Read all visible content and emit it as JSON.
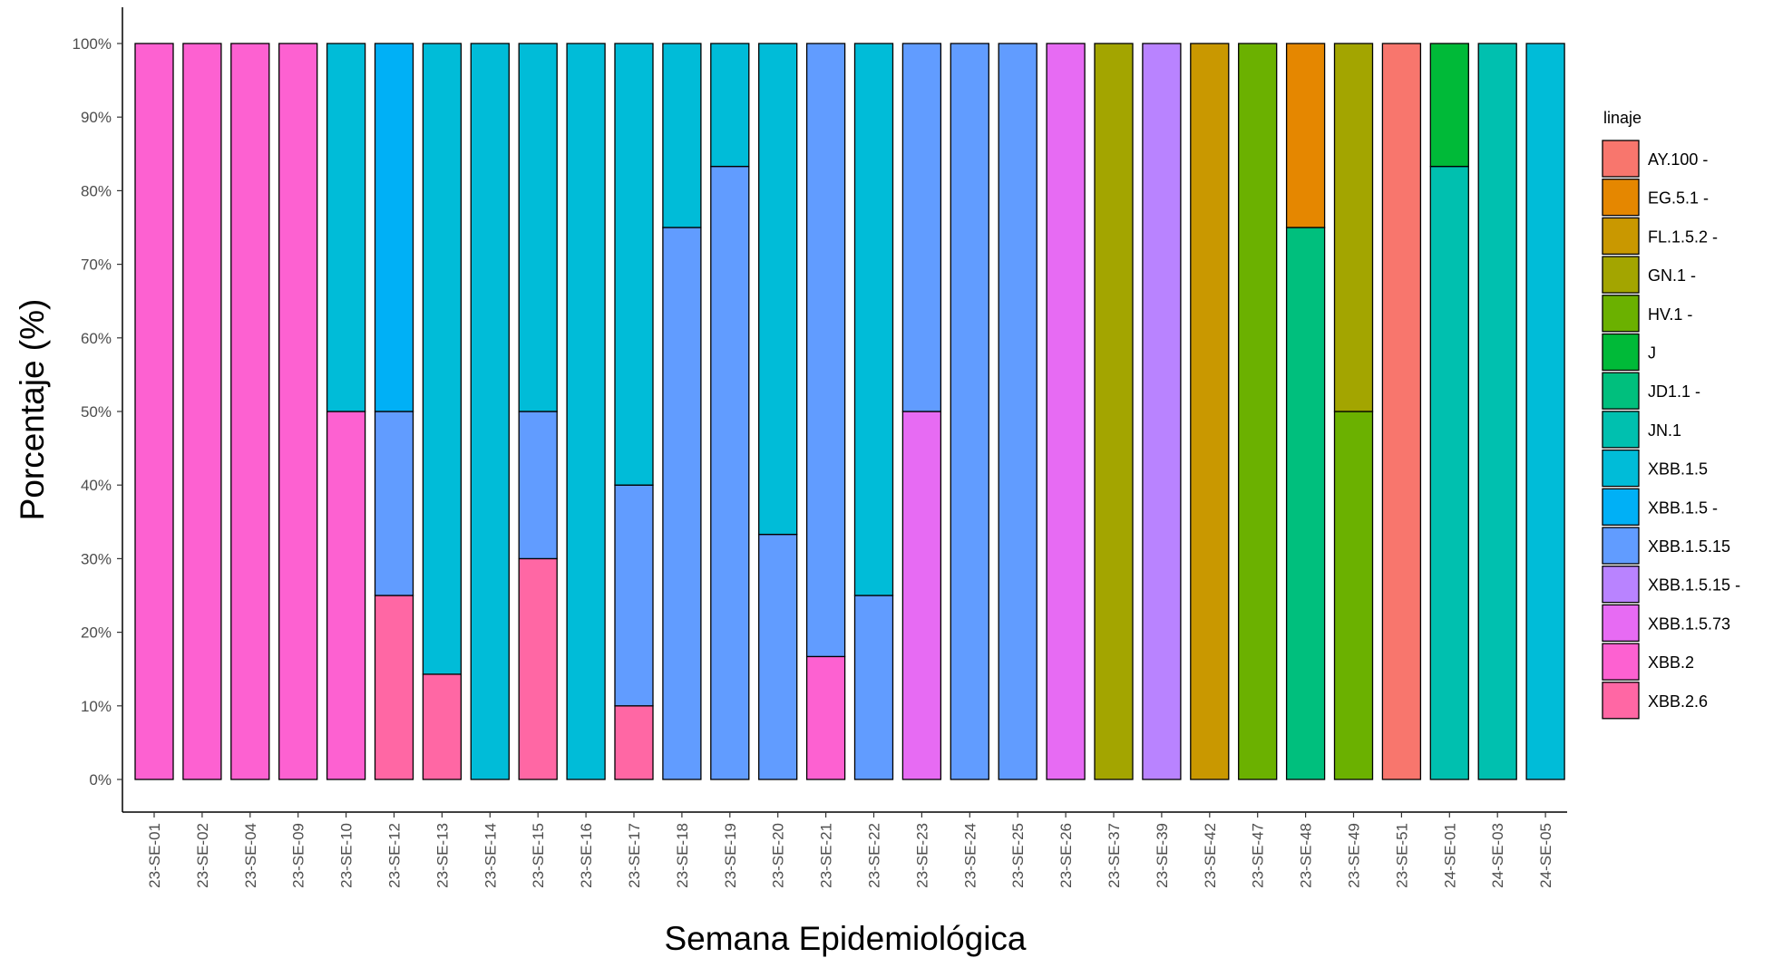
{
  "chart_data": {
    "type": "bar",
    "stacked": true,
    "percent": true,
    "xlabel": "Semana Epidemiológica",
    "ylabel": "Porcentaje (%)",
    "ylim": [
      0,
      100
    ],
    "yticks": [
      "0%",
      "10%",
      "20%",
      "30%",
      "40%",
      "50%",
      "60%",
      "70%",
      "80%",
      "90%",
      "100%"
    ],
    "grid": false,
    "legend": {
      "title": "linaje",
      "position": "right"
    },
    "categories": [
      "23-SE-01",
      "23-SE-02",
      "23-SE-04",
      "23-SE-09",
      "23-SE-10",
      "23-SE-12",
      "23-SE-13",
      "23-SE-14",
      "23-SE-15",
      "23-SE-16",
      "23-SE-17",
      "23-SE-18",
      "23-SE-19",
      "23-SE-20",
      "23-SE-21",
      "23-SE-22",
      "23-SE-23",
      "23-SE-24",
      "23-SE-25",
      "23-SE-26",
      "23-SE-37",
      "23-SE-39",
      "23-SE-42",
      "23-SE-47",
      "23-SE-48",
      "23-SE-49",
      "23-SE-51",
      "24-SE-01",
      "24-SE-03",
      "24-SE-05"
    ],
    "series": [
      {
        "name": "AY.100 -",
        "color": "#F8766D",
        "values": [
          0,
          0,
          0,
          0,
          0,
          0,
          0,
          0,
          0,
          0,
          0,
          0,
          0,
          0,
          0,
          0,
          0,
          0,
          0,
          0,
          0,
          0,
          0,
          0,
          0,
          0,
          100,
          0,
          0,
          0
        ]
      },
      {
        "name": "EG.5.1 -",
        "color": "#E58700",
        "values": [
          0,
          0,
          0,
          0,
          0,
          0,
          0,
          0,
          0,
          0,
          0,
          0,
          0,
          0,
          0,
          0,
          0,
          0,
          0,
          0,
          0,
          0,
          0,
          0,
          25,
          0,
          0,
          0,
          0,
          0
        ]
      },
      {
        "name": "FL.1.5.2 -",
        "color": "#C99800",
        "values": [
          0,
          0,
          0,
          0,
          0,
          0,
          0,
          0,
          0,
          0,
          0,
          0,
          0,
          0,
          0,
          0,
          0,
          0,
          0,
          0,
          0,
          0,
          100,
          0,
          0,
          0,
          0,
          0,
          0,
          0
        ]
      },
      {
        "name": "GN.1 -",
        "color": "#A3A500",
        "values": [
          0,
          0,
          0,
          0,
          0,
          0,
          0,
          0,
          0,
          0,
          0,
          0,
          0,
          0,
          0,
          0,
          0,
          0,
          0,
          0,
          100,
          0,
          0,
          0,
          0,
          50,
          0,
          0,
          0,
          0
        ]
      },
      {
        "name": "HV.1 -",
        "color": "#6BB100",
        "values": [
          0,
          0,
          0,
          0,
          0,
          0,
          0,
          0,
          0,
          0,
          0,
          0,
          0,
          0,
          0,
          0,
          0,
          0,
          0,
          0,
          0,
          0,
          0,
          100,
          0,
          50,
          0,
          0,
          0,
          0
        ]
      },
      {
        "name": "J",
        "color": "#00BA38",
        "values": [
          0,
          0,
          0,
          0,
          0,
          0,
          0,
          0,
          0,
          0,
          0,
          0,
          0,
          0,
          0,
          0,
          0,
          0,
          0,
          0,
          0,
          0,
          0,
          0,
          0,
          0,
          0,
          16.7,
          0,
          0
        ]
      },
      {
        "name": "JD1.1 -",
        "color": "#00BF7D",
        "values": [
          0,
          0,
          0,
          0,
          0,
          0,
          0,
          0,
          0,
          0,
          0,
          0,
          0,
          0,
          0,
          0,
          0,
          0,
          0,
          0,
          0,
          0,
          0,
          0,
          75,
          0,
          0,
          0,
          0,
          0
        ]
      },
      {
        "name": "JN.1",
        "color": "#00C0AF",
        "values": [
          0,
          0,
          0,
          0,
          0,
          0,
          0,
          0,
          0,
          0,
          0,
          0,
          0,
          0,
          0,
          0,
          0,
          0,
          0,
          0,
          0,
          0,
          0,
          0,
          0,
          0,
          0,
          83.3,
          100,
          0
        ]
      },
      {
        "name": "XBB.1.5",
        "color": "#00BCD8",
        "values": [
          0,
          0,
          0,
          0,
          50,
          0,
          85.7,
          100,
          50,
          100,
          60,
          25,
          16.7,
          66.7,
          0,
          75,
          0,
          0,
          0,
          0,
          0,
          0,
          0,
          0,
          0,
          0,
          0,
          0,
          0,
          100
        ]
      },
      {
        "name": "XBB.1.5 -",
        "color": "#00B0F6",
        "values": [
          0,
          0,
          0,
          0,
          0,
          50,
          0,
          0,
          0,
          0,
          0,
          0,
          0,
          0,
          0,
          0,
          0,
          0,
          0,
          0,
          0,
          0,
          0,
          0,
          0,
          0,
          0,
          0,
          0,
          0
        ]
      },
      {
        "name": "XBB.1.5.15",
        "color": "#619CFF",
        "values": [
          0,
          0,
          0,
          0,
          0,
          25,
          0,
          0,
          20,
          0,
          30,
          75,
          83.3,
          33.3,
          83.3,
          25,
          50,
          100,
          100,
          0,
          0,
          0,
          0,
          0,
          0,
          0,
          0,
          0,
          0,
          0
        ]
      },
      {
        "name": "XBB.1.5.15 -",
        "color": "#B983FF",
        "values": [
          0,
          0,
          0,
          0,
          0,
          0,
          0,
          0,
          0,
          0,
          0,
          0,
          0,
          0,
          0,
          0,
          0,
          0,
          0,
          0,
          0,
          100,
          0,
          0,
          0,
          0,
          0,
          0,
          0,
          0
        ]
      },
      {
        "name": "XBB.1.5.73",
        "color": "#E76BF3",
        "values": [
          0,
          0,
          0,
          0,
          0,
          0,
          0,
          0,
          0,
          0,
          0,
          0,
          0,
          0,
          0,
          0,
          50,
          0,
          0,
          100,
          0,
          0,
          0,
          0,
          0,
          0,
          0,
          0,
          0,
          0
        ]
      },
      {
        "name": "XBB.2",
        "color": "#FD61D1",
        "values": [
          100,
          100,
          100,
          100,
          50,
          0,
          0,
          0,
          0,
          0,
          0,
          0,
          0,
          0,
          16.7,
          0,
          0,
          0,
          0,
          0,
          0,
          0,
          0,
          0,
          0,
          0,
          0,
          0,
          0,
          0
        ]
      },
      {
        "name": "XBB.2.6",
        "color": "#FF67A4",
        "values": [
          0,
          0,
          0,
          0,
          0,
          25,
          14.3,
          0,
          30,
          0,
          10,
          0,
          0,
          0,
          0,
          0,
          0,
          0,
          0,
          0,
          0,
          0,
          0,
          0,
          0,
          0,
          0,
          0,
          0,
          0
        ]
      }
    ]
  }
}
